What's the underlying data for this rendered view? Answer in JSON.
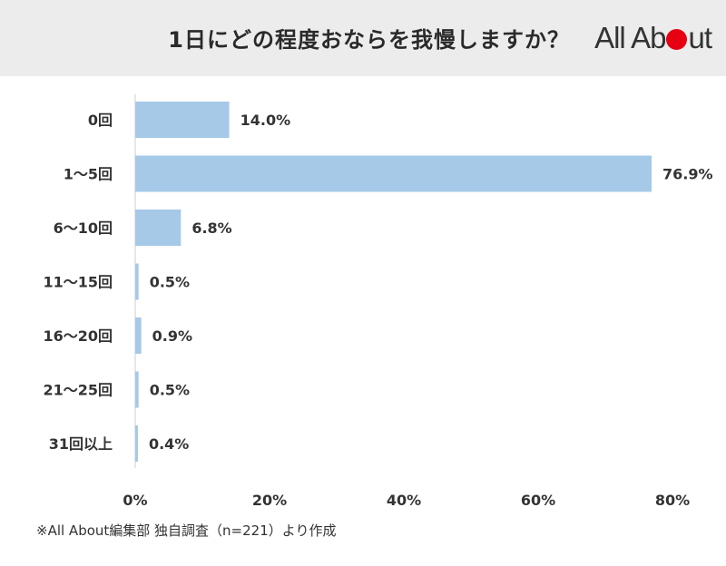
{
  "header": {
    "title": "1日にどの程度おならを我慢しますか？",
    "logo": {
      "pre": "All Ab",
      "post": "ut"
    },
    "logo_dot_color": "#e60012"
  },
  "chart_data": {
    "type": "bar",
    "orientation": "horizontal",
    "categories": [
      "0回",
      "1～5回",
      "6～10回",
      "11～15回",
      "16～20回",
      "21～25回",
      "31回以上"
    ],
    "values": [
      14.0,
      76.9,
      6.8,
      0.5,
      0.9,
      0.5,
      0.4
    ],
    "value_labels": [
      "14.0%",
      "76.9%",
      "6.8%",
      "0.5%",
      "0.9%",
      "0.5%",
      "0.4%"
    ],
    "x_ticks": [
      "0%",
      "20%",
      "40%",
      "60%",
      "80%"
    ],
    "xlim": [
      0,
      80
    ],
    "bar_color": "#a6c9e8",
    "grid": false
  },
  "footnote": "※All About編集部 独自調査（n=221）より作成"
}
